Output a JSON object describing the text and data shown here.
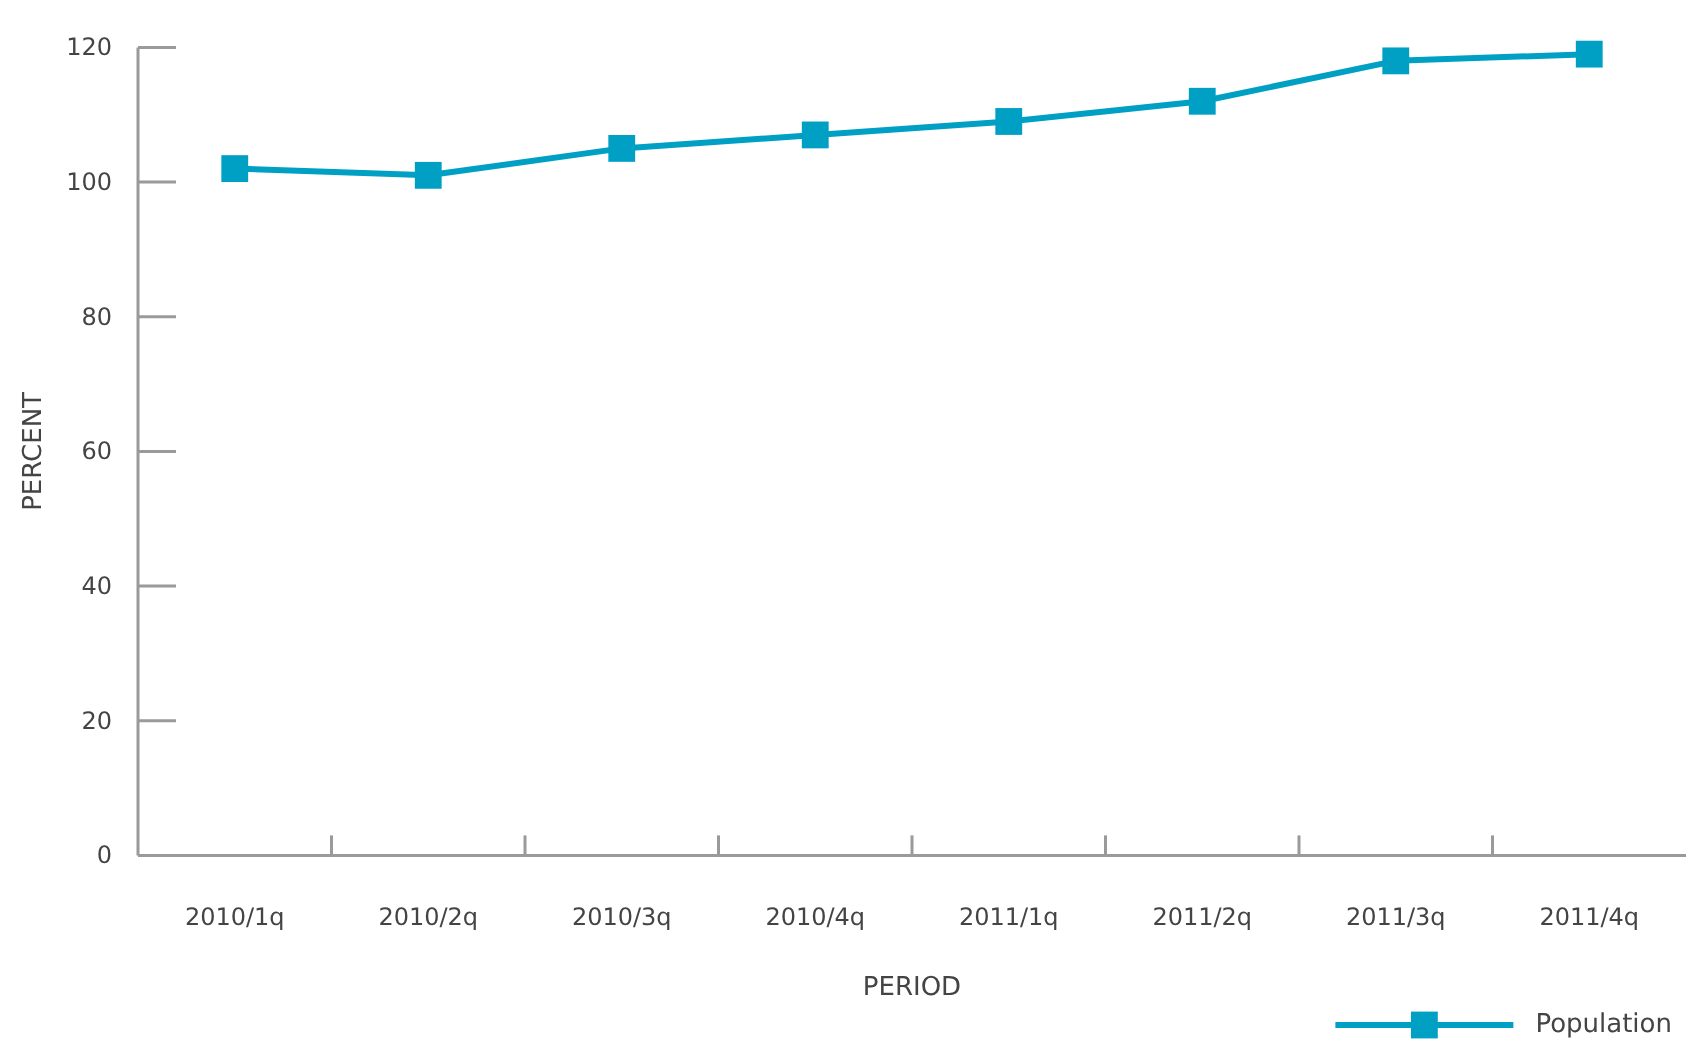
{
  "chart_data": {
    "type": "line",
    "xlabel": "PERIOD",
    "ylabel": "PERCENT",
    "categories": [
      "2010/1q",
      "2010/2q",
      "2010/3q",
      "2010/4q",
      "2011/1q",
      "2011/2q",
      "2011/3q",
      "2011/4q"
    ],
    "series": [
      {
        "name": "Population",
        "color": "#00a0c4",
        "values": [
          102,
          101,
          105,
          107,
          109,
          112,
          118,
          119
        ]
      }
    ],
    "ylim": [
      0,
      120
    ],
    "yticks": [
      0,
      20,
      40,
      60,
      80,
      100,
      120
    ],
    "marker": "square",
    "legend": "bottom right"
  }
}
